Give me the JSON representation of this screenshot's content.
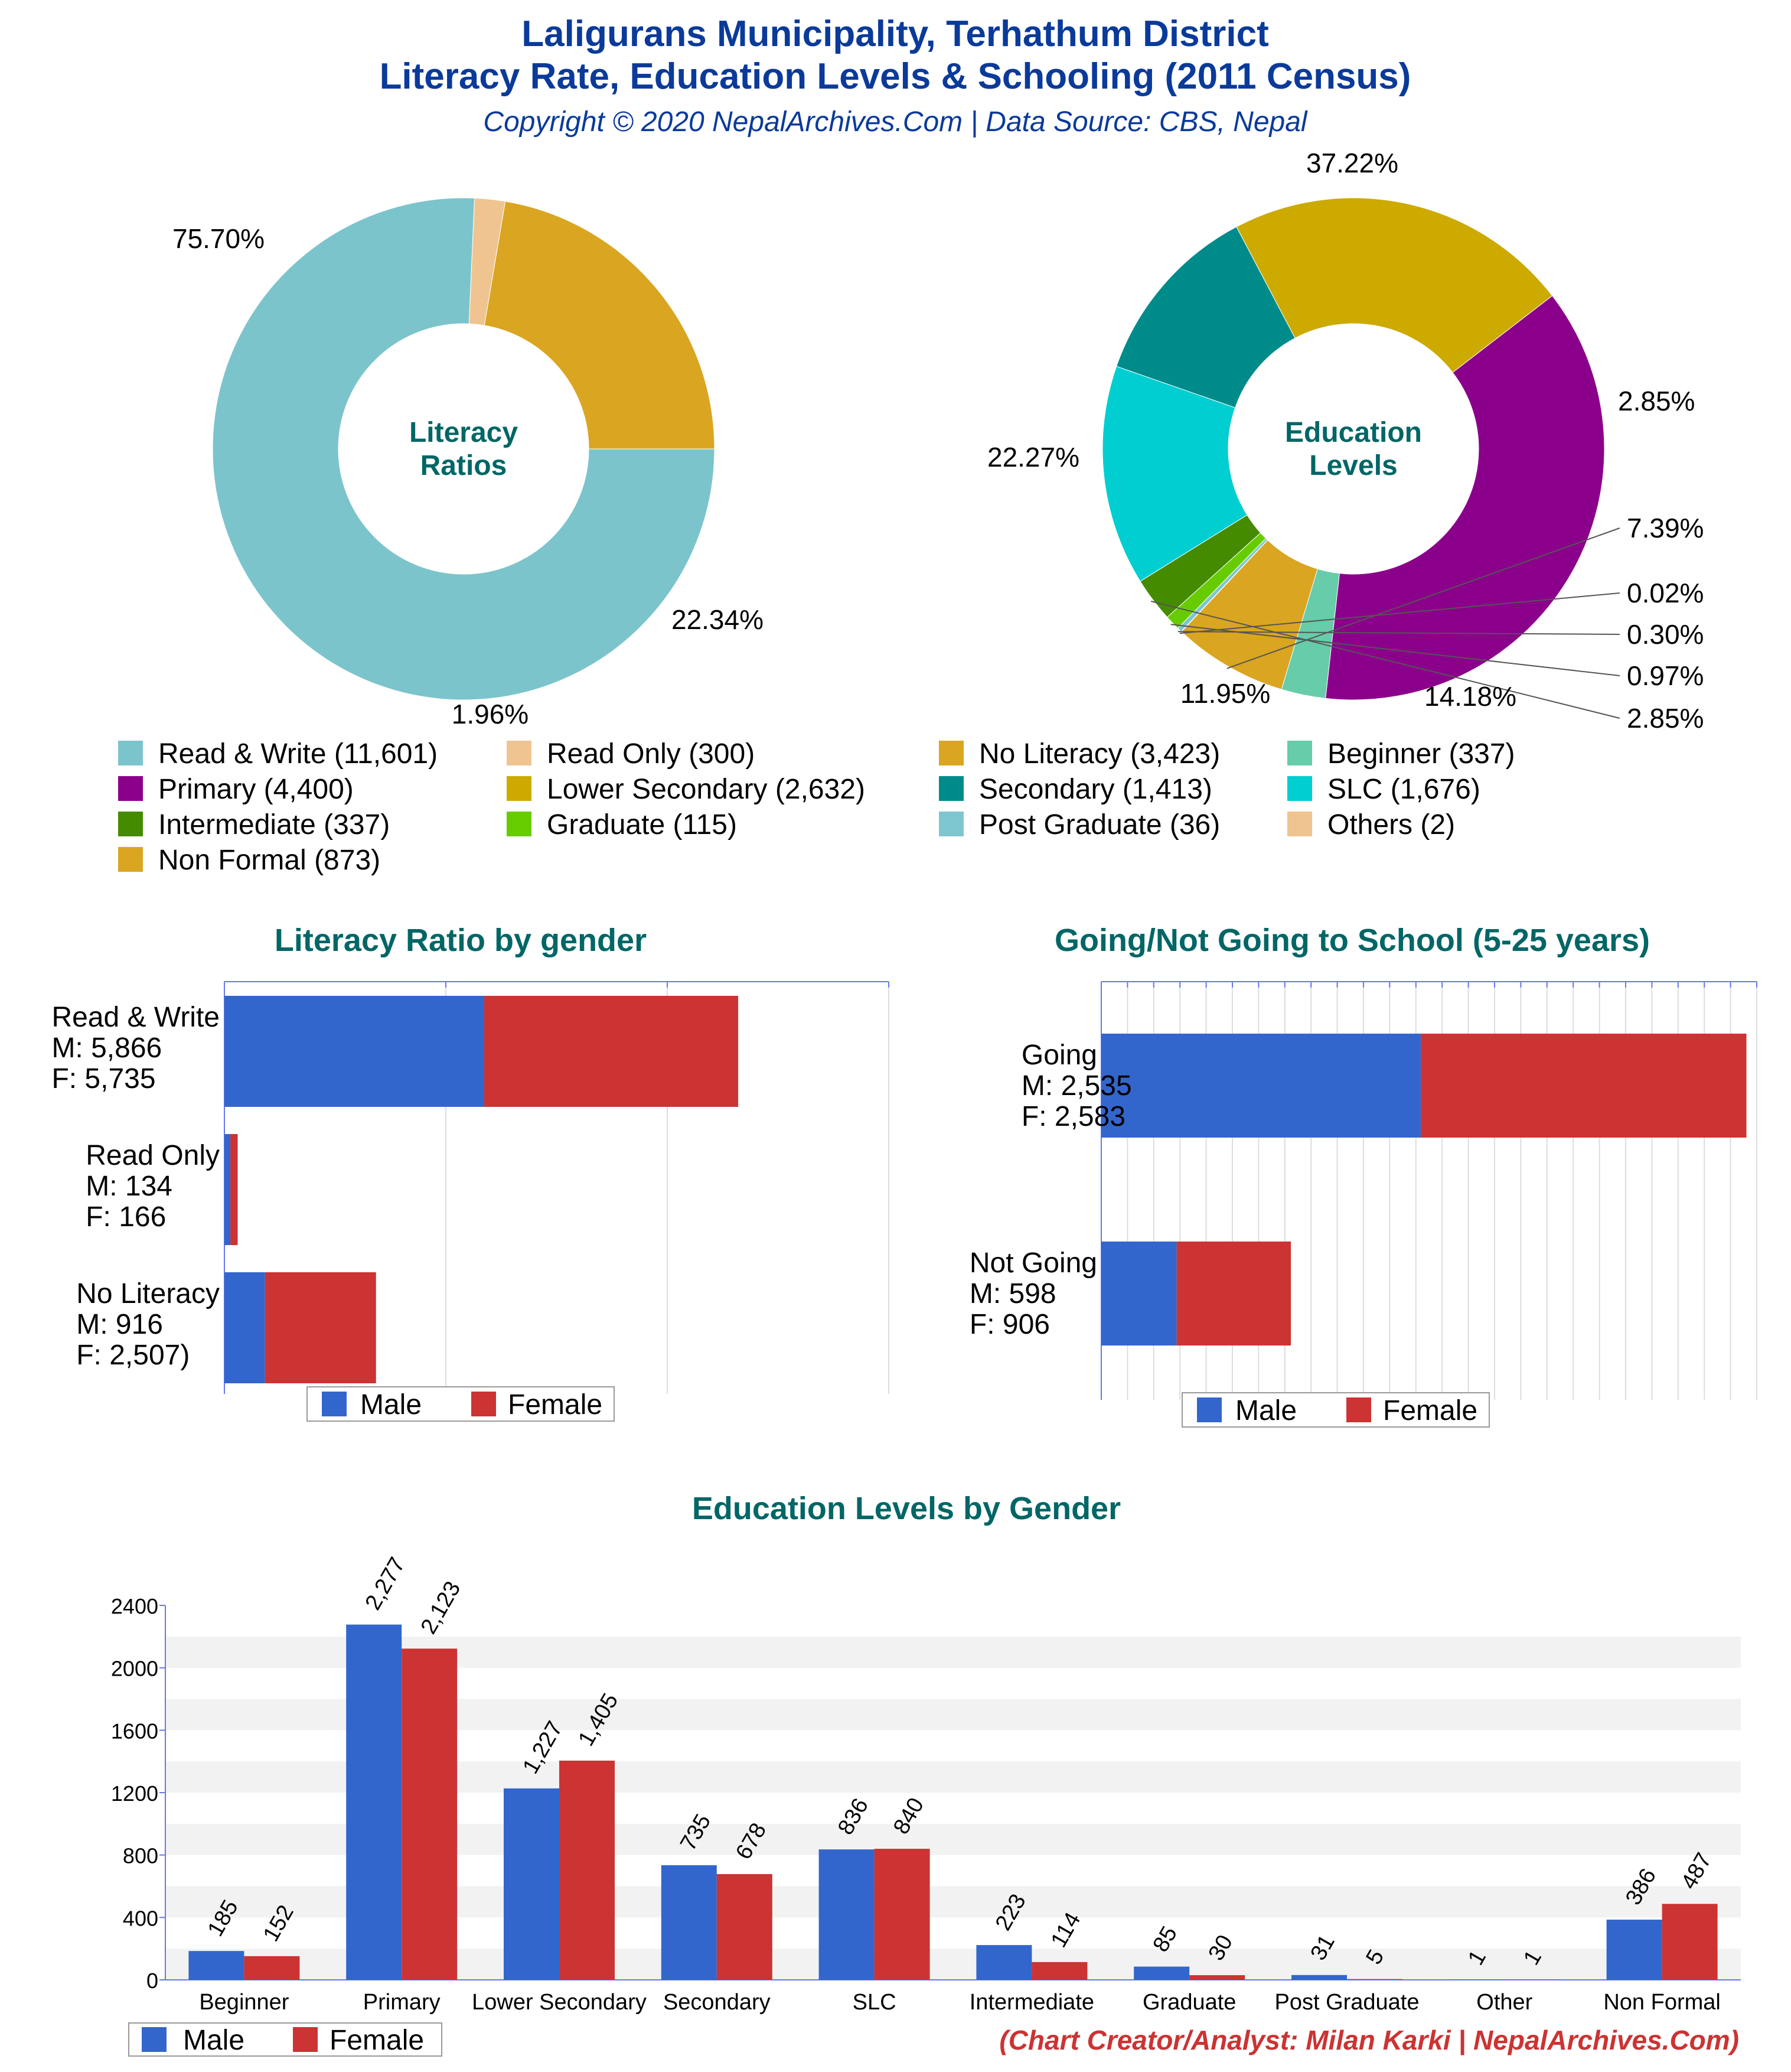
{
  "header": {
    "title_line1": "Laligurans Municipality, Terhathum District",
    "title_line2": "Literacy Rate, Education Levels & Schooling (2011 Census)",
    "subtitle": "Copyright © 2020 NepalArchives.Com | Data Source: CBS, Nepal"
  },
  "footer": {
    "credit": "(Chart Creator/Analyst: Milan Karki | NepalArchives.Com)"
  },
  "legend": {
    "items": [
      {
        "label": "Read & Write (11,601)",
        "color": "#7cc4cc"
      },
      {
        "label": "Read Only (300)",
        "color": "#f0c490"
      },
      {
        "label": "No Literacy (3,423)",
        "color": "#daa520"
      },
      {
        "label": "Beginner (337)",
        "color": "#66ccaa"
      },
      {
        "label": "Primary (4,400)",
        "color": "#8b008b"
      },
      {
        "label": "Lower Secondary (2,632)",
        "color": "#ccaa00"
      },
      {
        "label": "Secondary (1,413)",
        "color": "#008b8b"
      },
      {
        "label": "SLC (1,676)",
        "color": "#00ced1"
      },
      {
        "label": "Intermediate (337)",
        "color": "#458b00"
      },
      {
        "label": "Graduate (115)",
        "color": "#66cc00"
      },
      {
        "label": "Post Graduate (36)",
        "color": "#7ec6cf"
      },
      {
        "label": "Others (2)",
        "color": "#f0c490"
      },
      {
        "label": "Non Formal (873)",
        "color": "#daa520"
      }
    ]
  },
  "colors": {
    "male": "#3366cc",
    "female": "#cc3333",
    "title_blue": "#0a3a9a",
    "title_teal": "#006666",
    "credit_red": "#cc3333"
  },
  "chart_data": [
    {
      "type": "pie",
      "center_label": [
        "Literacy",
        "Ratios"
      ],
      "slices": [
        {
          "label": "Read & Write",
          "value": 75.7,
          "display": "75.70%",
          "color": "#7cc4cc"
        },
        {
          "label": "Read Only",
          "value": 1.96,
          "display": "1.96%",
          "color": "#f0c490"
        },
        {
          "label": "No Literacy",
          "value": 22.34,
          "display": "22.34%",
          "color": "#daa520"
        }
      ]
    },
    {
      "type": "pie",
      "center_label": [
        "Education",
        "Levels"
      ],
      "slices": [
        {
          "label": "Primary",
          "value": 37.22,
          "display": "37.22%",
          "color": "#8b008b"
        },
        {
          "label": "Beginner",
          "value": 2.85,
          "display": "2.85%",
          "color": "#66ccaa"
        },
        {
          "label": "Non Formal",
          "value": 7.39,
          "display": "7.39%",
          "color": "#daa520"
        },
        {
          "label": "Others",
          "value": 0.02,
          "display": "0.02%",
          "color": "#f0c490"
        },
        {
          "label": "Post Graduate",
          "value": 0.3,
          "display": "0.30%",
          "color": "#7ec6cf"
        },
        {
          "label": "Graduate",
          "value": 0.97,
          "display": "0.97%",
          "color": "#66cc00"
        },
        {
          "label": "Intermediate",
          "value": 2.85,
          "display": "2.85%",
          "color": "#458b00"
        },
        {
          "label": "SLC",
          "value": 14.18,
          "display": "14.18%",
          "color": "#00ced1"
        },
        {
          "label": "Secondary",
          "value": 11.95,
          "display": "11.95%",
          "color": "#008b8b"
        },
        {
          "label": "Lower Secondary",
          "value": 22.27,
          "display": "22.27%",
          "color": "#ccaa00"
        }
      ]
    },
    {
      "type": "bar",
      "orientation": "horizontal",
      "stacked": true,
      "title": "Literacy Ratio by gender",
      "categories": [
        "Read & Write",
        "Read Only",
        "No Literacy"
      ],
      "category_labels": [
        [
          "Read & Write",
          "M: 5,866",
          "F: 5,735"
        ],
        [
          "Read Only",
          "M: 134",
          "F: 166"
        ],
        [
          "No Literacy",
          "M: 916",
          "F: 2,507)"
        ]
      ],
      "series": [
        {
          "name": "Male",
          "values": [
            5866,
            134,
            916
          ]
        },
        {
          "name": "Female",
          "values": [
            5735,
            166,
            2507
          ]
        }
      ],
      "xlim": [
        0,
        15000
      ],
      "legend": [
        "Male",
        "Female"
      ]
    },
    {
      "type": "bar",
      "orientation": "horizontal",
      "stacked": true,
      "title": "Going/Not Going to School (5-25 years)",
      "categories": [
        "Going",
        "Not Going"
      ],
      "category_labels": [
        [
          "Going",
          "M: 2,535",
          "F: 2,583"
        ],
        [
          "Not Going",
          "M: 598",
          "F: 906"
        ]
      ],
      "series": [
        {
          "name": "Male",
          "values": [
            2535,
            598
          ]
        },
        {
          "name": "Female",
          "values": [
            2583,
            906
          ]
        }
      ],
      "xlim": [
        0,
        5200
      ],
      "legend": [
        "Male",
        "Female"
      ]
    },
    {
      "type": "bar",
      "title": "Education Levels by Gender",
      "categories": [
        "Beginner",
        "Primary",
        "Lower Secondary",
        "Secondary",
        "SLC",
        "Intermediate",
        "Graduate",
        "Post Graduate",
        "Other",
        "Non Formal"
      ],
      "series": [
        {
          "name": "Male",
          "values": [
            185,
            2277,
            1227,
            735,
            836,
            223,
            85,
            31,
            1,
            386
          ],
          "labels": [
            "185",
            "2,277",
            "1,227",
            "735",
            "836",
            "223",
            "85",
            "31",
            "1",
            "386"
          ]
        },
        {
          "name": "Female",
          "values": [
            152,
            2123,
            1405,
            678,
            840,
            114,
            30,
            5,
            1,
            487
          ],
          "labels": [
            "152",
            "2,123",
            "1,405",
            "678",
            "840",
            "114",
            "30",
            "5",
            "1",
            "487"
          ]
        }
      ],
      "ylim": [
        0,
        2400
      ],
      "yticks": [
        0,
        400,
        800,
        1200,
        1600,
        2000,
        2400
      ],
      "legend": [
        "Male",
        "Female"
      ]
    }
  ]
}
